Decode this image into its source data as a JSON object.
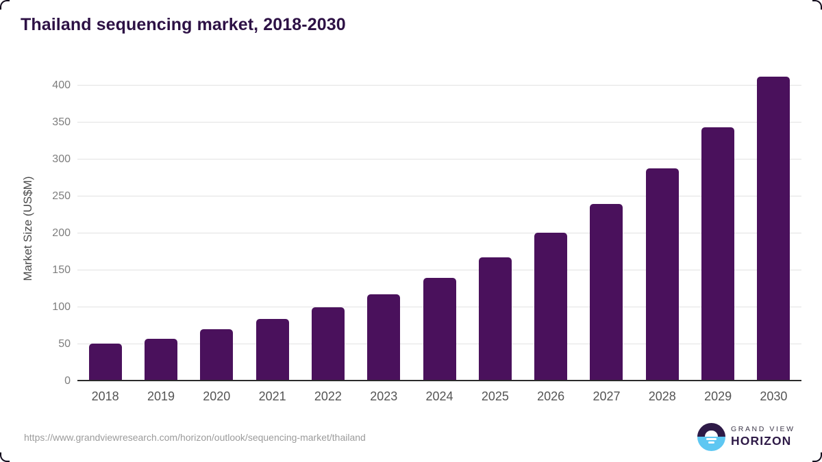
{
  "title": "Thailand sequencing market, 2018-2030",
  "footer": {
    "source_url": "https://www.grandviewresearch.com/horizon/outlook/sequencing-market/thailand",
    "logo": {
      "line1": "GRAND VIEW",
      "line2": "HORIZON"
    }
  },
  "colors": {
    "bar": "#4A115C",
    "title": "#2D1145",
    "gridline": "#E2E2E2",
    "axis_line": "#2B2B2B",
    "tick_label": "#7D7D7D",
    "year_label": "#545454",
    "axis_title": "#4A4A4A",
    "url_text": "#9B9B9B",
    "logo_purple": "#2E1A47",
    "logo_blue": "#5EC7F2",
    "logo_gray": "#3A3547",
    "corner_border": "#140D1E"
  },
  "chart_data": {
    "type": "bar",
    "title": "Thailand sequencing market, 2018-2030",
    "categories": [
      "2018",
      "2019",
      "2020",
      "2021",
      "2022",
      "2023",
      "2024",
      "2025",
      "2026",
      "2027",
      "2028",
      "2029",
      "2030"
    ],
    "values": [
      51,
      57,
      70,
      84,
      100,
      118,
      140,
      168,
      201,
      240,
      288,
      344,
      412
    ],
    "xlabel": "",
    "ylabel": "Market Size (US$M)",
    "ylim": [
      0,
      413
    ],
    "yticks": [
      0,
      50,
      100,
      150,
      200,
      250,
      300,
      350,
      400
    ],
    "grid": true,
    "legend": false,
    "bar_color": "#4A115C"
  }
}
